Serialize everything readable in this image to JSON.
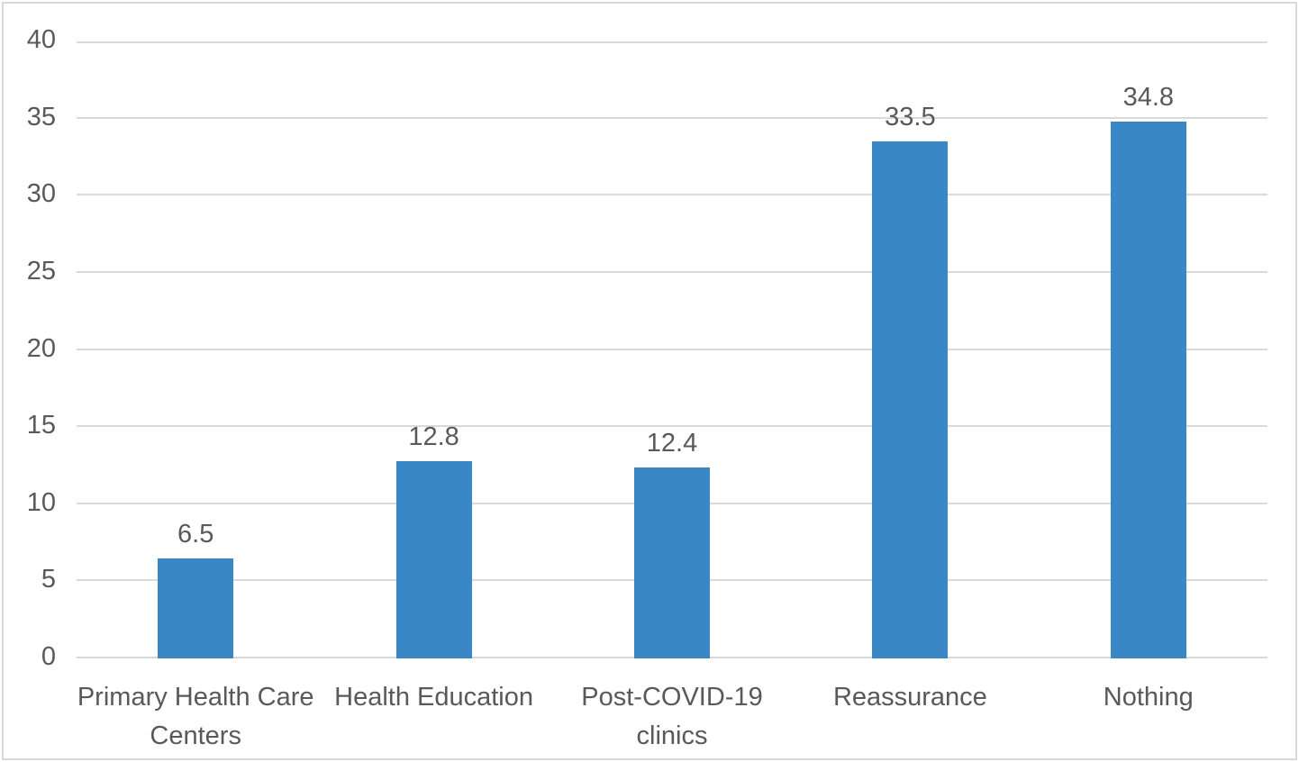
{
  "chart_data": {
    "type": "bar",
    "title": "",
    "xlabel": "",
    "ylabel": "",
    "categories": [
      "Primary Health Care Centers",
      "Health Education",
      "Post-COVID-19 clinics",
      "Reassurance",
      "Nothing"
    ],
    "values": [
      6.5,
      12.8,
      12.4,
      33.5,
      34.8
    ],
    "data_labels": [
      "6.5",
      "12.8",
      "12.4",
      "33.5",
      "34.8"
    ],
    "ylim": [
      0,
      40
    ],
    "yticks": [
      0,
      5,
      10,
      15,
      20,
      25,
      30,
      35,
      40
    ],
    "grid": true,
    "legend_position": "none",
    "colors": {
      "bar_fill": "#3A87C6",
      "gridline": "#D9D9D9",
      "frame_border": "#D9D9D9",
      "label_text": "#595959",
      "background": "#FFFFFF"
    }
  }
}
